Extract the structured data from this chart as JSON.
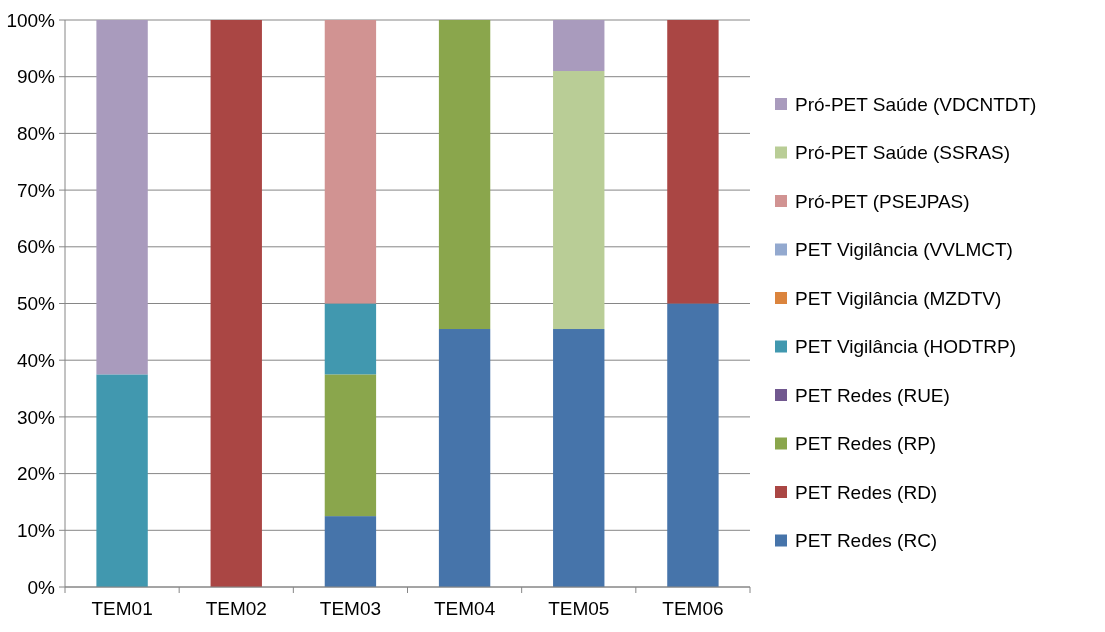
{
  "chart_data": {
    "type": "bar",
    "stacked": true,
    "categories": [
      "TEM01",
      "TEM02",
      "TEM03",
      "TEM04",
      "TEM05",
      "TEM06"
    ],
    "series": [
      {
        "name": "PET Redes (RC)",
        "color": "#4674aa",
        "values": [
          0,
          0,
          12.5,
          45.5,
          45.5,
          50
        ]
      },
      {
        "name": "PET Redes (RD)",
        "color": "#aa4644",
        "values": [
          0,
          100,
          0,
          0,
          0,
          50
        ]
      },
      {
        "name": "PET Redes (RP)",
        "color": "#8aa64c",
        "values": [
          0,
          0,
          25,
          54.5,
          0,
          0
        ]
      },
      {
        "name": "PET Redes (RUE)",
        "color": "#71588f",
        "values": [
          0,
          0,
          0,
          0,
          0,
          0
        ]
      },
      {
        "name": "PET Vigilância (HODTRP)",
        "color": "#4198af",
        "values": [
          37.5,
          0,
          12.5,
          0,
          0,
          0
        ]
      },
      {
        "name": "PET Vigilância (MZDTV)",
        "color": "#db843d",
        "values": [
          0,
          0,
          0,
          0,
          0,
          0
        ]
      },
      {
        "name": "PET Vigilância (VVLMCT)",
        "color": "#93a9cf",
        "values": [
          0,
          0,
          0,
          0,
          0,
          0
        ]
      },
      {
        "name": "Pró-PET (PSEJPAS)",
        "color": "#d19392",
        "values": [
          0,
          0,
          50,
          0,
          0,
          0
        ]
      },
      {
        "name": "Pró-PET Saúde (SSRAS)",
        "color": "#b9cd96",
        "values": [
          0,
          0,
          0,
          0,
          45.5,
          0
        ]
      },
      {
        "name": "Pró-PET Saúde (VDCNTDT)",
        "color": "#a99bbd",
        "values": [
          62.5,
          0,
          0,
          0,
          9,
          0
        ]
      }
    ],
    "ylim": [
      0,
      100
    ],
    "yticks": [
      {
        "value": 0,
        "label": "0%"
      },
      {
        "value": 10,
        "label": "10%"
      },
      {
        "value": 20,
        "label": "20%"
      },
      {
        "value": 30,
        "label": "30%"
      },
      {
        "value": 40,
        "label": "40%"
      },
      {
        "value": 50,
        "label": "50%"
      },
      {
        "value": 60,
        "label": "60%"
      },
      {
        "value": 70,
        "label": "70%"
      },
      {
        "value": 80,
        "label": "80%"
      },
      {
        "value": 90,
        "label": "90%"
      },
      {
        "value": 100,
        "label": "100%"
      }
    ],
    "grid": "y",
    "legend": "right"
  }
}
